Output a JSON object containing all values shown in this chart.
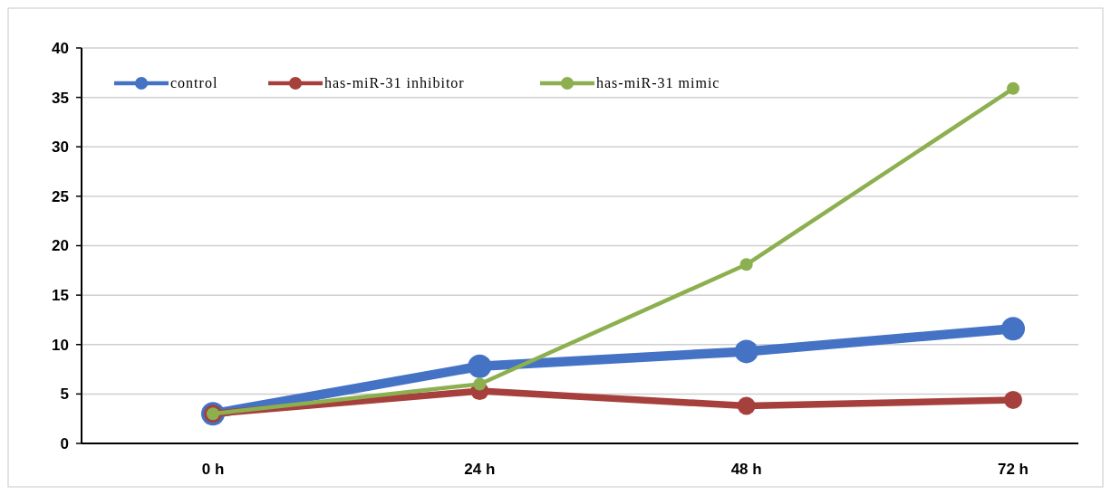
{
  "chart_data": {
    "type": "line",
    "categories": [
      "0 h",
      "24 h",
      "48 h",
      "72 h"
    ],
    "series": [
      {
        "name": "control",
        "color": "#4472c4",
        "values": [
          3.0,
          7.8,
          9.3,
          11.6
        ]
      },
      {
        "name": "has-miR-31 inhibitor",
        "color": "#a5403d",
        "values": [
          3.0,
          5.3,
          3.8,
          4.4
        ]
      },
      {
        "name": "has-miR-31 mimic",
        "color": "#8cb04f",
        "values": [
          3.0,
          6.0,
          18.1,
          35.9
        ]
      }
    ],
    "ylim": [
      0,
      40
    ],
    "yticks": [
      0,
      5,
      10,
      15,
      20,
      25,
      30,
      35,
      40
    ],
    "grid": "y",
    "legend": "top left",
    "marker": "circle",
    "line_style": "solid"
  }
}
